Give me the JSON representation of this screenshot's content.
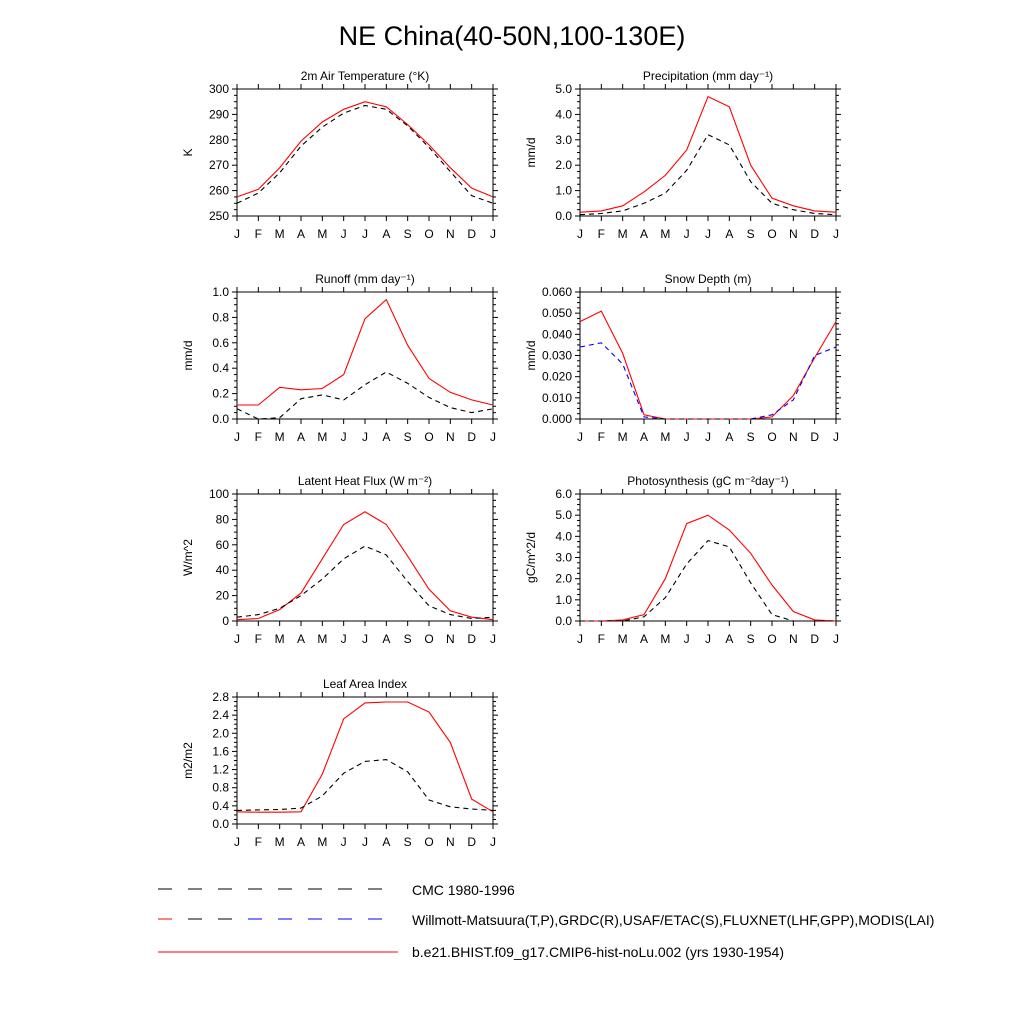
{
  "figure": {
    "title": "NE China(40-50N,100-130E)",
    "legend": [
      {
        "label": "CMC 1980-1996",
        "color": "#000000",
        "style": "dashed"
      },
      {
        "label": "Willmott-Matsuura(T,P),GRDC(R),USAF/ETAC(S),FLUXNET(LHF,GPP),MODIS(LAI)",
        "color": "#000000",
        "style": "dashed-mixed"
      },
      {
        "label": "b.e21.BHIST.f09_g17.CMIP6-hist-noLu.002 (yrs 1930-1954)",
        "color": "#ff0000",
        "style": "solid"
      }
    ]
  },
  "chart_data": [
    {
      "type": "line",
      "title": "2m Air Temperature (°K)",
      "ylabel": "K",
      "ylim": [
        250,
        300
      ],
      "yticks": [
        "250",
        "260",
        "270",
        "280",
        "290",
        "300"
      ],
      "x": [
        "J",
        "F",
        "M",
        "A",
        "M",
        "J",
        "J",
        "A",
        "S",
        "O",
        "N",
        "D",
        "J"
      ],
      "series": [
        {
          "role": "model",
          "color": "#ff0000",
          "dash": "solid",
          "values": [
            257.5,
            260.5,
            269,
            279.5,
            287,
            292,
            295,
            293,
            286,
            278,
            269,
            261,
            257.5
          ]
        },
        {
          "role": "obs",
          "color": "#000000",
          "dash": "dashed",
          "values": [
            255,
            259,
            267,
            277.5,
            285,
            290.5,
            293.5,
            292,
            285.5,
            277,
            267.5,
            258,
            255
          ]
        }
      ]
    },
    {
      "type": "line",
      "title": "Precipitation (mm day⁻¹)",
      "ylabel": "mm/d",
      "ylim": [
        0,
        5
      ],
      "yticks": [
        "0.0",
        "1.0",
        "2.0",
        "3.0",
        "4.0",
        "5.0"
      ],
      "x": [
        "J",
        "F",
        "M",
        "A",
        "M",
        "J",
        "J",
        "A",
        "S",
        "O",
        "N",
        "D",
        "J"
      ],
      "series": [
        {
          "role": "model",
          "color": "#ff0000",
          "dash": "solid",
          "values": [
            0.15,
            0.2,
            0.4,
            0.95,
            1.6,
            2.6,
            4.7,
            4.3,
            2.0,
            0.7,
            0.4,
            0.2,
            0.15
          ]
        },
        {
          "role": "obs",
          "color": "#000000",
          "dash": "dashed",
          "values": [
            0.05,
            0.1,
            0.2,
            0.5,
            0.9,
            1.8,
            3.2,
            2.8,
            1.35,
            0.5,
            0.25,
            0.1,
            0.05
          ]
        }
      ]
    },
    {
      "type": "line",
      "title": "Runoff (mm day⁻¹)",
      "ylabel": "mm/d",
      "ylim": [
        0,
        1
      ],
      "yticks": [
        "0.0",
        "0.2",
        "0.4",
        "0.6",
        "0.8",
        "1.0"
      ],
      "x": [
        "J",
        "F",
        "M",
        "A",
        "M",
        "J",
        "J",
        "A",
        "S",
        "O",
        "N",
        "D",
        "J"
      ],
      "series": [
        {
          "role": "model",
          "color": "#ff0000",
          "dash": "solid",
          "values": [
            0.11,
            0.11,
            0.25,
            0.23,
            0.24,
            0.35,
            0.79,
            0.94,
            0.58,
            0.32,
            0.21,
            0.15,
            0.11
          ]
        },
        {
          "role": "obs",
          "color": "#000000",
          "dash": "dashed",
          "values": [
            0.08,
            0.0,
            0.01,
            0.16,
            0.19,
            0.15,
            0.27,
            0.37,
            0.28,
            0.17,
            0.09,
            0.05,
            0.08
          ]
        }
      ]
    },
    {
      "type": "line",
      "title": "Snow Depth (m)",
      "ylabel": "mm/d",
      "ylim": [
        0,
        0.06
      ],
      "yticks": [
        "0.000",
        "0.010",
        "0.020",
        "0.030",
        "0.040",
        "0.050",
        "0.060"
      ],
      "x": [
        "J",
        "F",
        "M",
        "A",
        "M",
        "J",
        "J",
        "A",
        "S",
        "O",
        "N",
        "D",
        "J"
      ],
      "series": [
        {
          "role": "model",
          "color": "#ff0000",
          "dash": "solid",
          "values": [
            0.046,
            0.051,
            0.031,
            0.002,
            0.0,
            0.0,
            0.0,
            0.0,
            0.0,
            0.001,
            0.011,
            0.029,
            0.046
          ]
        },
        {
          "role": "obs-usaf",
          "color": "#0000ff",
          "dash": "dashed",
          "values": [
            0.034,
            0.036,
            0.026,
            0.001,
            0.0,
            0.0,
            0.0,
            0.0,
            0.0,
            0.002,
            0.009,
            0.03,
            0.034
          ]
        },
        {
          "role": "obs-cmc",
          "color": "#000000",
          "dash": "dashed",
          "values": [
            0.0,
            0.0,
            0.0,
            0.0,
            0.0,
            0.0,
            0.0,
            0.0,
            0.0,
            0.0,
            0.0,
            0.0,
            0.0
          ]
        }
      ]
    },
    {
      "type": "line",
      "title": "Latent Heat Flux (W m⁻²)",
      "ylabel": "W/m^2",
      "ylim": [
        0,
        100
      ],
      "yticks": [
        "0",
        "20",
        "40",
        "60",
        "80",
        "100"
      ],
      "x": [
        "J",
        "F",
        "M",
        "A",
        "M",
        "J",
        "J",
        "A",
        "S",
        "O",
        "N",
        "D",
        "J"
      ],
      "series": [
        {
          "role": "model",
          "color": "#ff0000",
          "dash": "solid",
          "values": [
            1,
            2,
            9,
            22,
            49,
            76,
            86,
            76,
            51,
            25,
            8,
            3,
            1
          ]
        },
        {
          "role": "obs",
          "color": "#000000",
          "dash": "dashed",
          "values": [
            3,
            5,
            10,
            20,
            33,
            49,
            59,
            52,
            31,
            12,
            5,
            2,
            3
          ]
        }
      ]
    },
    {
      "type": "line",
      "title": "Photosynthesis (gC m⁻²day⁻¹)",
      "ylabel": "gC/m^2/d",
      "ylim": [
        0,
        6
      ],
      "yticks": [
        "0.0",
        "1.0",
        "2.0",
        "3.0",
        "4.0",
        "5.0",
        "6.0"
      ],
      "x": [
        "J",
        "F",
        "M",
        "A",
        "M",
        "J",
        "J",
        "A",
        "S",
        "O",
        "N",
        "D",
        "J"
      ],
      "series": [
        {
          "role": "model",
          "color": "#ff0000",
          "dash": "solid",
          "values": [
            0.0,
            0.0,
            0.05,
            0.3,
            2.0,
            4.6,
            5.0,
            4.3,
            3.2,
            1.7,
            0.45,
            0.05,
            0.0
          ]
        },
        {
          "role": "obs",
          "color": "#000000",
          "dash": "dashed",
          "values": [
            0.0,
            0.0,
            0.0,
            0.2,
            1.1,
            2.7,
            3.8,
            3.5,
            1.8,
            0.3,
            0.0,
            0.0,
            0.0
          ]
        }
      ]
    },
    {
      "type": "line",
      "title": "Leaf Area Index",
      "ylabel": "m2/m2",
      "ylim": [
        0,
        2.8
      ],
      "yticks": [
        "0.0",
        "0.4",
        "0.8",
        "1.2",
        "1.6",
        "2.0",
        "2.4",
        "2.8"
      ],
      "x": [
        "J",
        "F",
        "M",
        "A",
        "M",
        "J",
        "J",
        "A",
        "S",
        "O",
        "N",
        "D",
        "J"
      ],
      "series": [
        {
          "role": "model",
          "color": "#ff0000",
          "dash": "solid",
          "values": [
            0.27,
            0.26,
            0.26,
            0.27,
            1.1,
            2.32,
            2.67,
            2.69,
            2.69,
            2.47,
            1.8,
            0.55,
            0.27
          ]
        },
        {
          "role": "obs",
          "color": "#000000",
          "dash": "dashed",
          "values": [
            0.3,
            0.31,
            0.32,
            0.35,
            0.62,
            1.12,
            1.38,
            1.42,
            1.15,
            0.53,
            0.38,
            0.33,
            0.3
          ]
        }
      ]
    }
  ]
}
